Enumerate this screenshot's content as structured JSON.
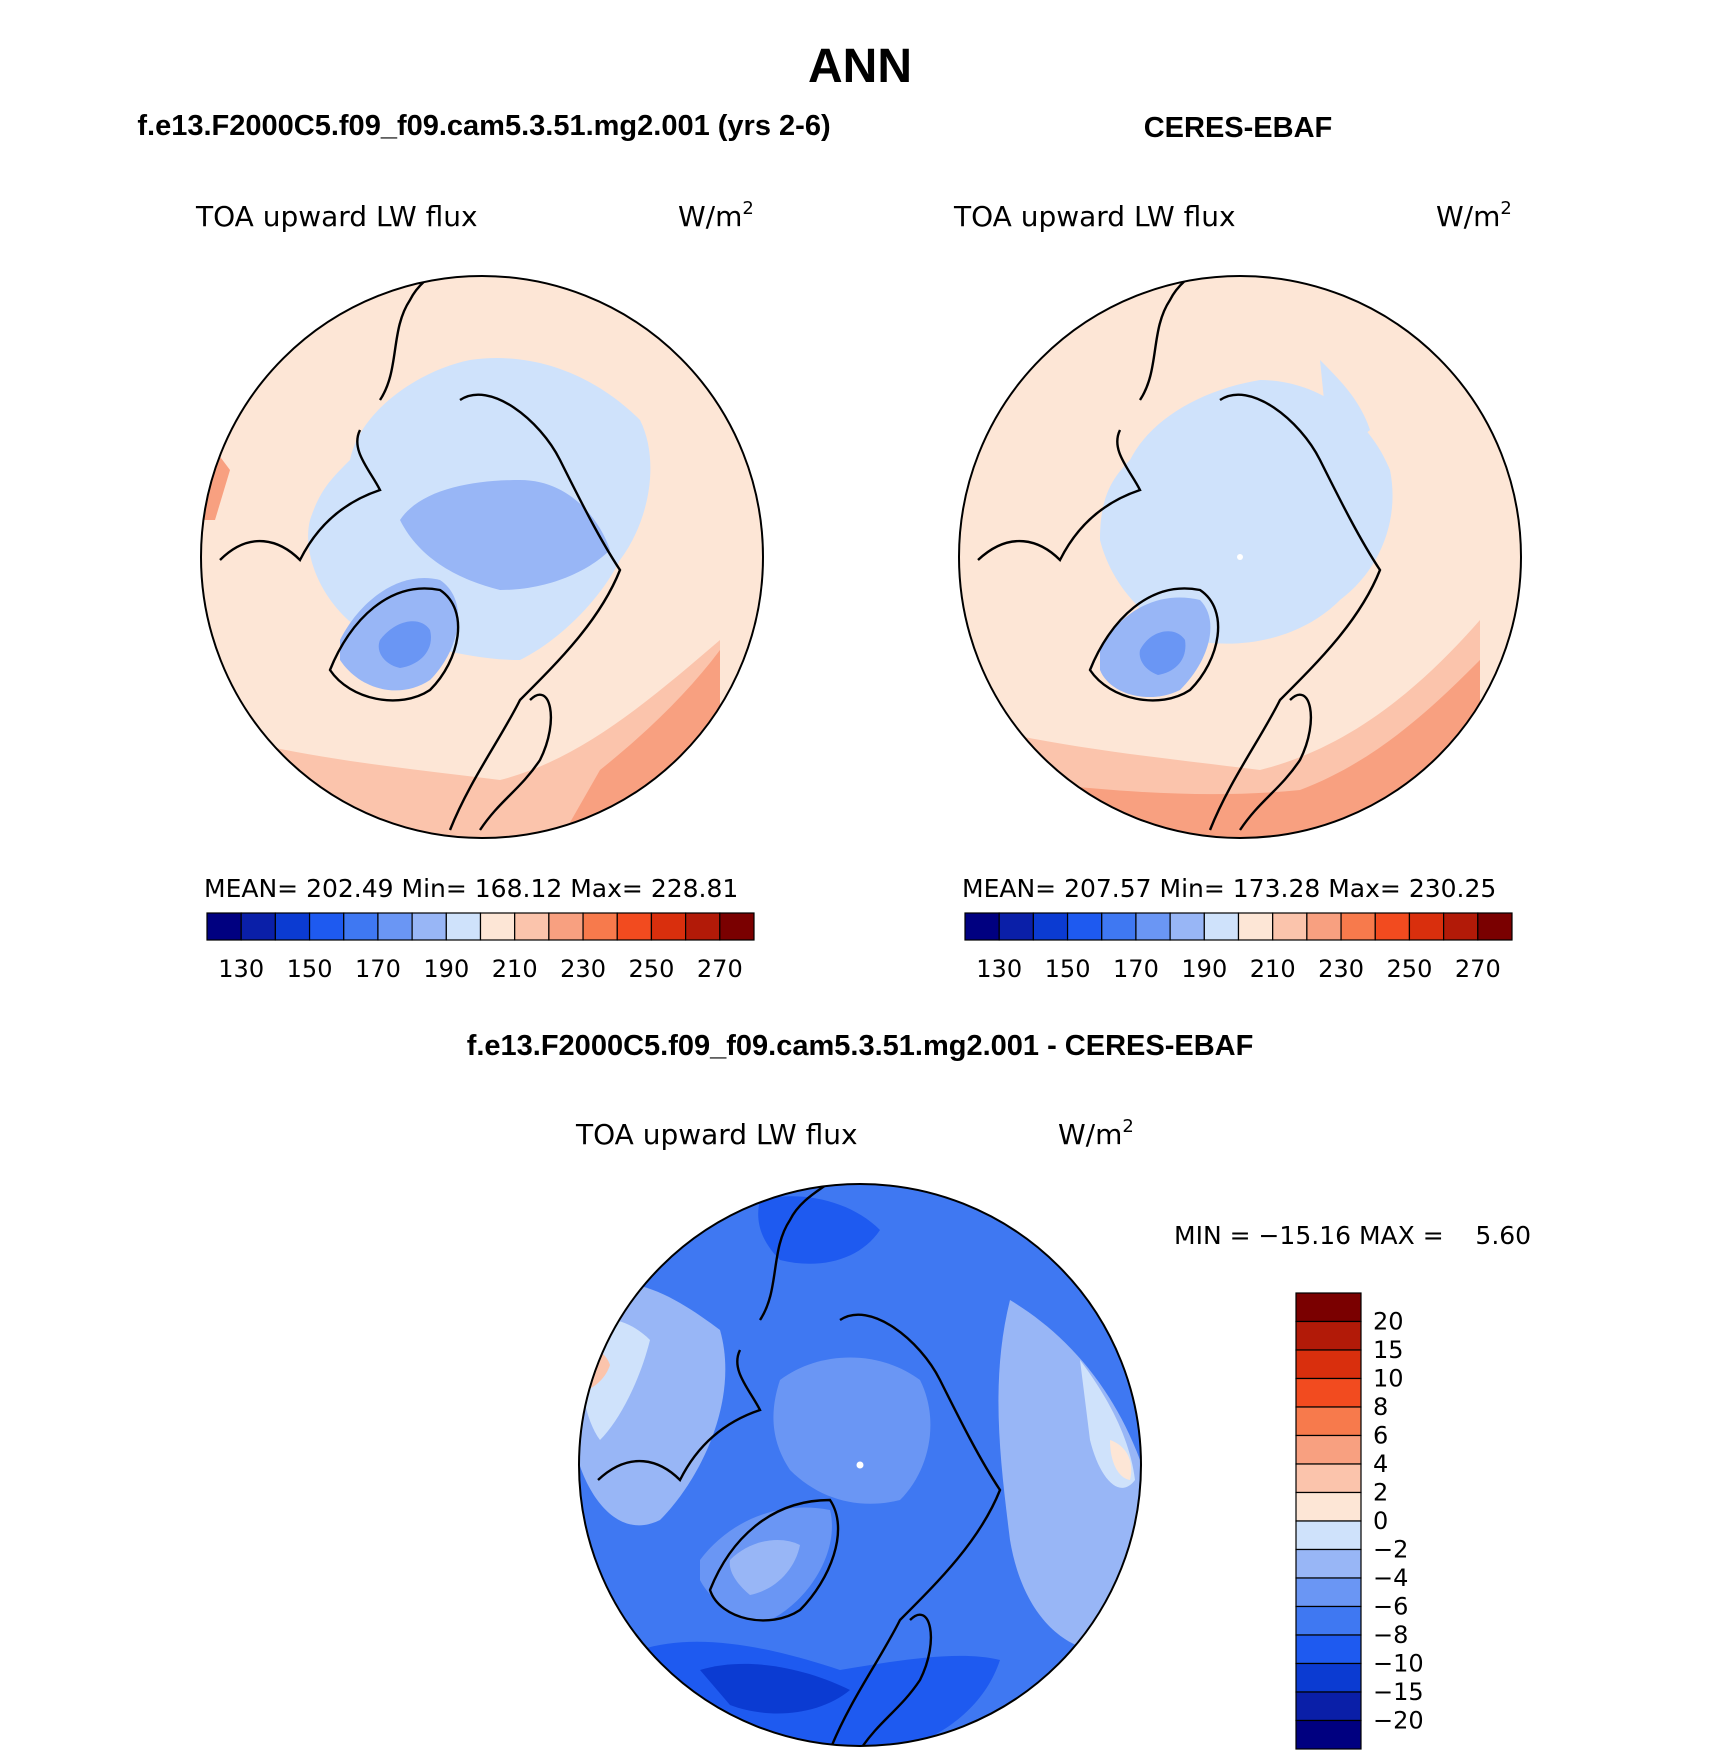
{
  "title": "ANN",
  "colors": {
    "levels": [
      "#000080",
      "#0a1fa8",
      "#0b3bd2",
      "#1e5af0",
      "#3f78f2",
      "#6a96f4",
      "#98b6f6",
      "#cfe2fb",
      "#fde6d6",
      "#fbc4ac",
      "#f8a080",
      "#f77a4c",
      "#f24b1f",
      "#d92f0d",
      "#b21a08",
      "#7a0000"
    ],
    "diff_levels": [
      "#000080",
      "#0a1fa8",
      "#0b3bd2",
      "#1e5af0",
      "#3f78f2",
      "#6a96f4",
      "#98b6f6",
      "#cfe2fb",
      "#fde6d6",
      "#fbc4ac",
      "#f8a080",
      "#f77a4c",
      "#f24b1f",
      "#d92f0d",
      "#b21a08",
      "#7a0000"
    ]
  },
  "chart_data": [
    {
      "type": "heatmap",
      "projection": "north-polar-stereographic",
      "case_title": "f.e13.F2000C5.f09_f09.cam5.3.51.mg2.001 (yrs 2-6)",
      "variable": "TOA upward LW flux",
      "units_base": "W/m",
      "units_exp": "2",
      "stats": {
        "mean_label": "MEAN=",
        "mean": "202.49",
        "min_label": "Min=",
        "min": "168.12",
        "max_label": "Max=",
        "max": "228.81"
      },
      "colorbar_ticks": [
        "130",
        "150",
        "170",
        "190",
        "210",
        "230",
        "250",
        "270"
      ],
      "colorbar_levels": [
        120,
        130,
        140,
        150,
        160,
        170,
        180,
        190,
        200,
        210,
        220,
        230,
        240,
        250,
        260,
        270,
        280
      ]
    },
    {
      "type": "heatmap",
      "projection": "north-polar-stereographic",
      "case_title": "CERES-EBAF",
      "variable": "TOA upward LW flux",
      "units_base": "W/m",
      "units_exp": "2",
      "stats": {
        "mean_label": "MEAN=",
        "mean": "207.57",
        "min_label": "Min=",
        "min": "173.28",
        "max_label": "Max=",
        "max": "230.25"
      },
      "colorbar_ticks": [
        "130",
        "150",
        "170",
        "190",
        "210",
        "230",
        "250",
        "270"
      ],
      "colorbar_levels": [
        120,
        130,
        140,
        150,
        160,
        170,
        180,
        190,
        200,
        210,
        220,
        230,
        240,
        250,
        260,
        270,
        280
      ]
    },
    {
      "type": "heatmap",
      "projection": "north-polar-stereographic",
      "case_title": "f.e13.F2000C5.f09_f09.cam5.3.51.mg2.001 - CERES-EBAF",
      "variable": "TOA upward LW flux",
      "units_base": "W/m",
      "units_exp": "2",
      "stats_line": "MIN = −15.16 MAX =    5.60",
      "stats": {
        "min": -15.16,
        "max": 5.6
      },
      "colorbar_ticks": [
        "20",
        "15",
        "10",
        "8",
        "6",
        "4",
        "2",
        "0",
        "−2",
        "−4",
        "−6",
        "−8",
        "−10",
        "−15",
        "−20"
      ],
      "colorbar_levels": [
        -20,
        -15,
        -10,
        -8,
        -6,
        -4,
        -2,
        0,
        2,
        4,
        6,
        8,
        10,
        15,
        20
      ]
    }
  ]
}
